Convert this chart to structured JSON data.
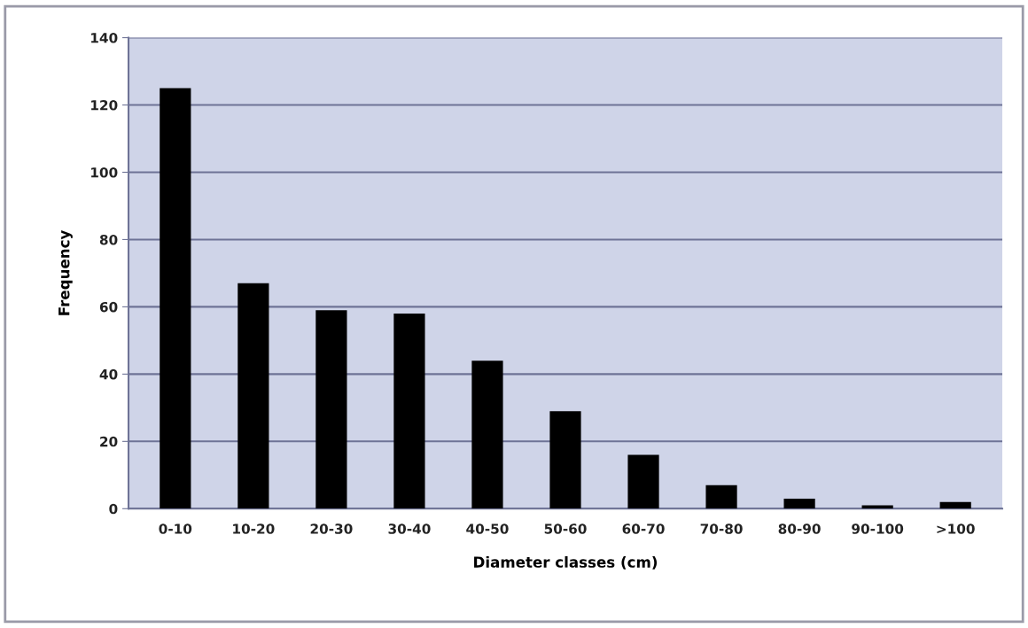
{
  "chart_data": {
    "type": "bar",
    "xlabel": "Diameter classes (cm)",
    "ylabel": "Frequency",
    "categories": [
      "0-10",
      "10-20",
      "20-30",
      "30-40",
      "40-50",
      "50-60",
      "60-70",
      "70-80",
      "80-90",
      "90-100",
      ">100"
    ],
    "values": [
      125,
      67,
      59,
      58,
      44,
      29,
      16,
      7,
      3,
      1,
      2
    ],
    "color": "#000000",
    "ylim": [
      0,
      140
    ],
    "yticks": [
      0,
      20,
      40,
      60,
      80,
      100,
      120,
      140
    ],
    "grid": "y",
    "legend": false
  }
}
